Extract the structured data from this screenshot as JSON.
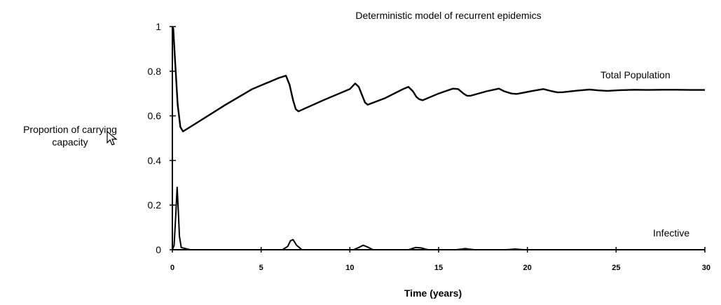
{
  "chart_data": {
    "type": "line",
    "title": "Deterministic model of recurrent epidemics",
    "xlabel": "Time (years)",
    "ylabel_lines": [
      "Proportion of carrying",
      "capacity"
    ],
    "xlim": [
      0,
      30
    ],
    "ylim": [
      0,
      1
    ],
    "xticks": [
      0,
      5,
      10,
      15,
      20,
      25,
      30
    ],
    "yticks": [
      0,
      0.2,
      0.4,
      0.6,
      0.8,
      1
    ],
    "ytick_labels": [
      "0",
      "0.2",
      "0.4",
      "0.6",
      "0.8",
      "1"
    ],
    "xtick_labels": [
      "0",
      "5",
      "10",
      "15",
      "20",
      "25",
      "30"
    ],
    "grid": false,
    "series": [
      {
        "name": "Total Population",
        "x": [
          0,
          0.05,
          0.15,
          0.3,
          0.45,
          0.6,
          1.5,
          3,
          4.5,
          6.0,
          6.4,
          6.6,
          6.8,
          6.95,
          7.1,
          8.5,
          10.0,
          10.3,
          10.5,
          10.7,
          10.85,
          11.0,
          12.0,
          13.0,
          13.3,
          13.55,
          13.75,
          13.9,
          14.1,
          15.0,
          15.8,
          16.1,
          16.4,
          16.6,
          16.8,
          17.7,
          18.4,
          18.7,
          19.1,
          19.4,
          20.3,
          20.9,
          21.3,
          21.7,
          22.0,
          22.8,
          23.5,
          24.0,
          24.5,
          25.2,
          26.0,
          26.8,
          27.6,
          28.4,
          29.2,
          30.0
        ],
        "values": [
          1.0,
          0.99,
          0.85,
          0.65,
          0.55,
          0.53,
          0.575,
          0.65,
          0.72,
          0.77,
          0.78,
          0.74,
          0.67,
          0.63,
          0.62,
          0.67,
          0.72,
          0.745,
          0.73,
          0.69,
          0.66,
          0.65,
          0.68,
          0.72,
          0.73,
          0.71,
          0.685,
          0.675,
          0.67,
          0.7,
          0.722,
          0.72,
          0.7,
          0.69,
          0.69,
          0.71,
          0.722,
          0.71,
          0.7,
          0.698,
          0.712,
          0.72,
          0.712,
          0.705,
          0.706,
          0.713,
          0.718,
          0.714,
          0.712,
          0.715,
          0.717,
          0.716,
          0.717,
          0.717,
          0.716,
          0.716
        ]
      },
      {
        "name": "Infective",
        "x": [
          0,
          0.1,
          0.2,
          0.27,
          0.32,
          0.4,
          0.5,
          1.0,
          6.2,
          6.5,
          6.65,
          6.8,
          7.0,
          7.3,
          10.2,
          10.5,
          10.75,
          11.0,
          11.3,
          13.3,
          13.7,
          14.0,
          14.4,
          16.0,
          16.5,
          17.0,
          18.8,
          19.3,
          19.8,
          30.0
        ],
        "values": [
          0.0,
          0.02,
          0.17,
          0.28,
          0.2,
          0.06,
          0.01,
          0.0,
          0.0,
          0.015,
          0.04,
          0.045,
          0.02,
          0.0,
          0.0,
          0.01,
          0.02,
          0.012,
          0.0,
          0.0,
          0.01,
          0.008,
          0.0,
          0.0,
          0.005,
          0.0,
          0.0,
          0.003,
          0.0,
          0.0
        ]
      }
    ]
  },
  "cursor_icon": "arrow-cursor-icon"
}
